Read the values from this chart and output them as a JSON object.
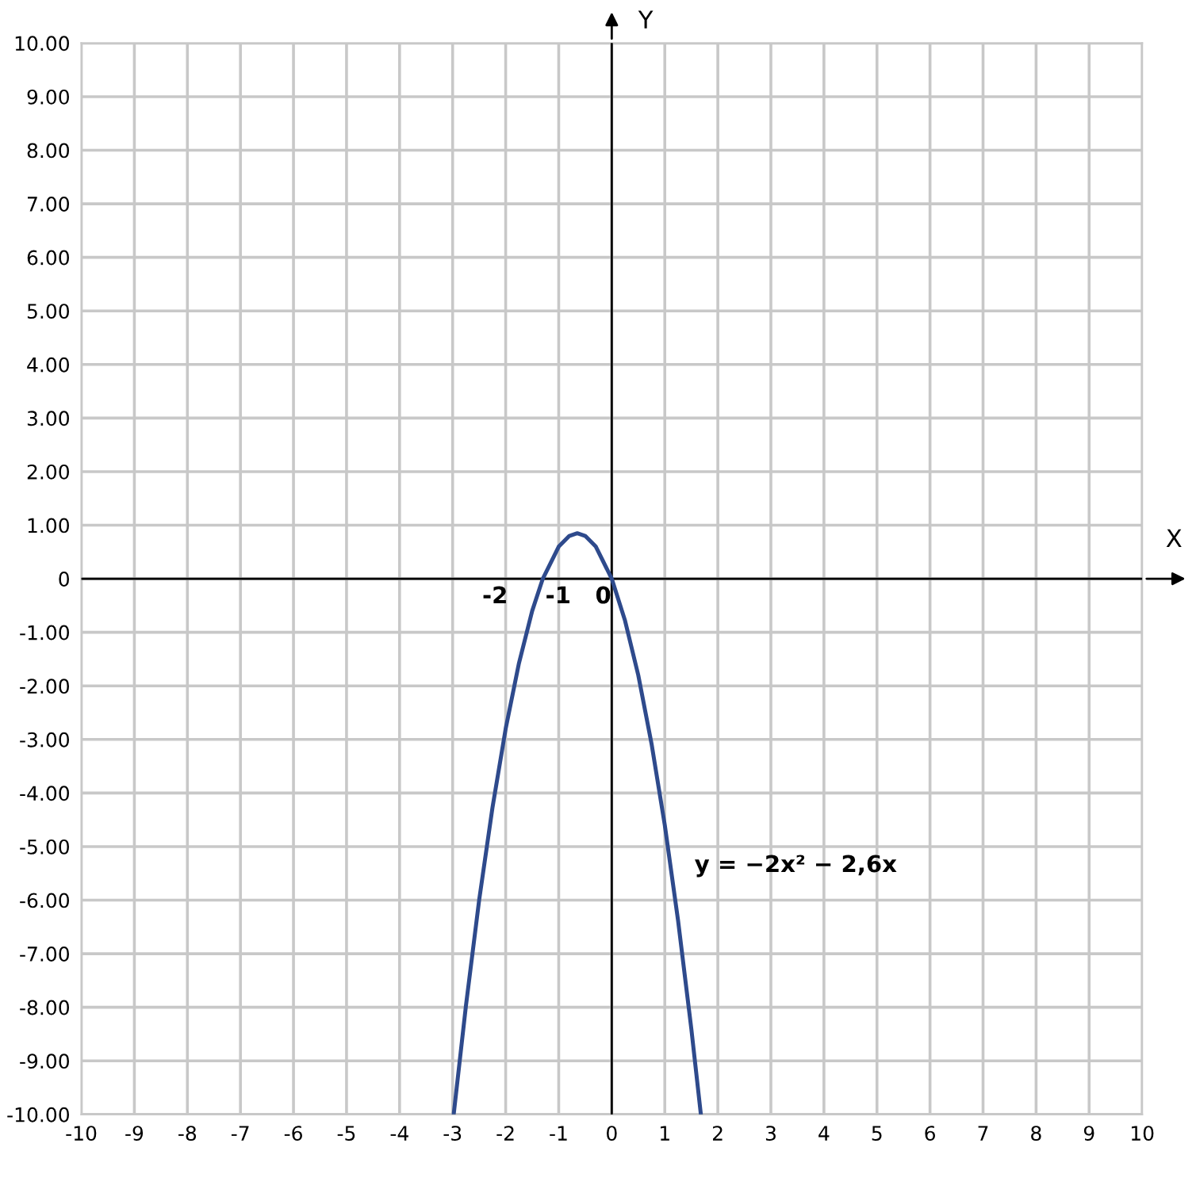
{
  "chart_data": {
    "type": "line",
    "xlabel": "X",
    "ylabel": "Y",
    "x": [
      -2.98,
      -2.75,
      -2.5,
      -2.25,
      -2,
      -1.75,
      -1.5,
      -1.3,
      -1,
      -0.8,
      -0.65,
      -0.5,
      -0.3,
      0,
      0.25,
      0.5,
      0.75,
      1,
      1.25,
      1.5,
      1.68
    ],
    "series": [
      {
        "color": "#2e4a8c",
        "values": [
          -10.0,
          -7.98,
          -6.0,
          -4.28,
          -2.8,
          -1.58,
          -0.6,
          0,
          0.6,
          0.8,
          0.85,
          0.8,
          0.6,
          0,
          -0.78,
          -1.8,
          -3.08,
          -4.6,
          -6.38,
          -8.4,
          -10.0
        ]
      }
    ],
    "xlim": [
      -10,
      10
    ],
    "ylim": [
      -10,
      10
    ],
    "xticks": [
      -10,
      -9,
      -8,
      -7,
      -6,
      -5,
      -4,
      -3,
      -2,
      -1,
      0,
      1,
      2,
      3,
      4,
      5,
      6,
      7,
      8,
      9,
      10
    ],
    "yticks": [
      {
        "value": -10,
        "label": "-10.00"
      },
      {
        "value": -9,
        "label": "-9.00"
      },
      {
        "value": -8,
        "label": "-8.00"
      },
      {
        "value": -7,
        "label": "-7.00"
      },
      {
        "value": -6,
        "label": "-6.00"
      },
      {
        "value": -5,
        "label": "-5.00"
      },
      {
        "value": -4,
        "label": "-4.00"
      },
      {
        "value": -3,
        "label": "-3.00"
      },
      {
        "value": -2,
        "label": "-2.00"
      },
      {
        "value": -1,
        "label": "-1.00"
      },
      0,
      {
        "value": 1,
        "label": "1.00"
      },
      {
        "value": 2,
        "label": "2.00"
      },
      {
        "value": 3,
        "label": "3.00"
      },
      {
        "value": 4,
        "label": "4.00"
      },
      {
        "value": 5,
        "label": "5.00"
      },
      {
        "value": 6,
        "label": "6.00"
      },
      {
        "value": 7,
        "label": "7.00"
      },
      {
        "value": 8,
        "label": "8.00"
      },
      {
        "value": 9,
        "label": "9.00"
      },
      {
        "value": 10,
        "label": "10.00"
      }
    ],
    "grid": true,
    "marker": "none",
    "line_style": "solid",
    "annotations": [
      "-2",
      "-1",
      "0",
      "y = −2x² − 2,6x"
    ]
  }
}
